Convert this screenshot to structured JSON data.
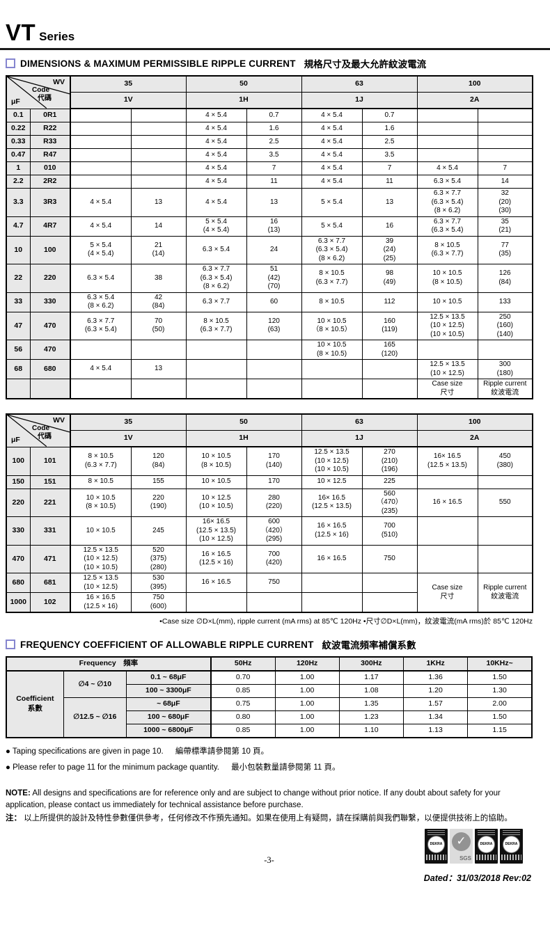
{
  "page": {
    "title": "VT",
    "title_suffix": "Series",
    "page_number": "-3-",
    "dated": "Dated：31/03/2018    Rev:02"
  },
  "section1": {
    "title_en": "DIMENSIONS & MAXIMUM PERMISSIBLE RIPPLE CURRENT",
    "title_cn": "規格尺寸及最大允許紋波電流"
  },
  "section2": {
    "title_en": "FREQUENCY COEFFICIENT OF ALLOWABLE RIPPLE CURRENT",
    "title_cn": "紋波電流頻率補償系數"
  },
  "cap_tables": [
    {
      "corner": {
        "wv": "WV",
        "code": "Code",
        "code_cn": "代碼",
        "uf": "μF"
      },
      "wv_values": [
        "35",
        "50",
        "63",
        "100"
      ],
      "code_values": [
        "1V",
        "1H",
        "1J",
        "2A"
      ],
      "rows": [
        {
          "uf": "0.1",
          "code": "0R1",
          "cells": [
            "",
            "",
            "4 × 5.4",
            "0.7",
            "4 × 5.4",
            "0.7",
            "",
            ""
          ]
        },
        {
          "uf": "0.22",
          "code": "R22",
          "cells": [
            "",
            "",
            "4 × 5.4",
            "1.6",
            "4 × 5.4",
            "1.6",
            "",
            ""
          ]
        },
        {
          "uf": "0.33",
          "code": "R33",
          "cells": [
            "",
            "",
            "4 × 5.4",
            "2.5",
            "4 × 5.4",
            "2.5",
            "",
            ""
          ]
        },
        {
          "uf": "0.47",
          "code": "R47",
          "cells": [
            "",
            "",
            "4 × 5.4",
            "3.5",
            "4 × 5.4",
            "3.5",
            "",
            ""
          ]
        },
        {
          "uf": "1",
          "code": "010",
          "cells": [
            "",
            "",
            "4 × 5.4",
            "7",
            "4 × 5.4",
            "7",
            "4 × 5.4",
            "7"
          ]
        },
        {
          "uf": "2.2",
          "code": "2R2",
          "cells": [
            "",
            "",
            "4 × 5.4",
            "11",
            "4 × 5.4",
            "11",
            "6.3 × 5.4",
            "14"
          ]
        },
        {
          "uf": "3.3",
          "code": "3R3",
          "cells": [
            "4 × 5.4",
            "13",
            "4 × 5.4",
            "13",
            "5 × 5.4",
            "13",
            "6.3 × 7.7\n(6.3 × 5.4)\n(8 × 6.2)",
            "32\n(20)\n(30)"
          ]
        },
        {
          "uf": "4.7",
          "code": "4R7",
          "cells": [
            "4 × 5.4",
            "14",
            "5 × 5.4\n(4 × 5.4)",
            "16\n(13)",
            "5 × 5.4",
            "16",
            "6.3 × 7.7\n(6.3 × 5.4)",
            "35\n(21)"
          ]
        },
        {
          "uf": "10",
          "code": "100",
          "cells": [
            "5 × 5.4\n(4 × 5.4)",
            "21\n(14)",
            "6.3 × 5.4",
            "24",
            "6.3 × 7.7\n(6.3 × 5.4)\n(8 × 6.2)",
            "39\n(24)\n(25)",
            "8 × 10.5\n(6.3 × 7.7)",
            "77\n(35)"
          ]
        },
        {
          "uf": "22",
          "code": "220",
          "cells": [
            "6.3 × 5.4",
            "38",
            "6.3 × 7.7\n(6.3 × 5.4)\n(8 × 6.2)",
            "51\n(42)\n(70)",
            "8 × 10.5\n(6.3 × 7.7)",
            "98\n(49)",
            "10 × 10.5\n(8 × 10.5)",
            "126\n(84)"
          ]
        },
        {
          "uf": "33",
          "code": "330",
          "cells": [
            "6.3 × 5.4\n(8 × 6.2)",
            "42\n(84)",
            "6.3 × 7.7",
            "60",
            "8 × 10.5",
            "112",
            "10 × 10.5",
            "133"
          ]
        },
        {
          "uf": "47",
          "code": "470",
          "cells": [
            "6.3 × 7.7\n(6.3 × 5.4)",
            "70\n(50)",
            "8 × 10.5\n(6.3 × 7.7)",
            "120\n(63)",
            "10 × 10.5\n（8 × 10.5）",
            "160\n(119)",
            "12.5 × 13.5\n(10 × 12.5)\n(10 × 10.5)",
            "250\n(160)\n(140)"
          ]
        },
        {
          "uf": "56",
          "code": "470",
          "cells": [
            "",
            "",
            "",
            "",
            "10 × 10.5\n(8 × 10.5)",
            "165\n(120)",
            "",
            ""
          ]
        },
        {
          "uf": "68",
          "code": "680",
          "cells": [
            "4 × 5.4",
            "13",
            "",
            "",
            "",
            "",
            "12.5 × 13.5\n(10 × 12.5)",
            "300\n(180)"
          ]
        },
        {
          "uf": "",
          "code": "",
          "cells": [
            "",
            "",
            "",
            "",
            "",
            "",
            "Case size\n尺寸",
            "Ripple current\n紋波電流"
          ]
        }
      ]
    },
    {
      "corner": {
        "wv": "WV",
        "code": "Code",
        "code_cn": "代碼",
        "uf": "μF"
      },
      "wv_values": [
        "35",
        "50",
        "63",
        "100"
      ],
      "code_values": [
        "1V",
        "1H",
        "1J",
        "2A"
      ],
      "rows": [
        {
          "uf": "100",
          "code": "101",
          "cells": [
            "8 × 10.5\n(6.3 × 7.7)",
            "120\n(84)",
            "10 × 10.5\n(8 × 10.5)",
            "170\n(140)",
            "12.5 × 13.5\n(10 × 12.5)\n(10 × 10.5)",
            "270\n(210)\n(196)",
            "16× 16.5\n(12.5 × 13.5)",
            "450\n(380)"
          ]
        },
        {
          "uf": "150",
          "code": "151",
          "cells": [
            "8 × 10.5",
            "155",
            "10 × 10.5",
            "170",
            "10 × 12.5",
            "225",
            "",
            ""
          ]
        },
        {
          "uf": "220",
          "code": "221",
          "cells": [
            "10 × 10.5\n(8 × 10.5)",
            "220\n(190)",
            "10 × 12.5\n(10 × 10.5)",
            "280\n(220)",
            "16× 16.5\n(12.5 × 13.5)",
            "560\n（470）\n(235)",
            "16 × 16.5",
            "550"
          ]
        },
        {
          "uf": "330",
          "code": "331",
          "cells": [
            "10 × 10.5",
            "245",
            "16× 16.5\n(12.5 × 13.5)\n(10 × 12.5)",
            "600\n（420）\n(295)",
            "16 × 16.5\n(12.5 × 16)",
            "700\n(510)",
            "",
            ""
          ]
        },
        {
          "uf": "470",
          "code": "471",
          "cells": [
            "12.5 × 13.5\n(10 × 12.5)\n(10 × 10.5)",
            "520\n(375)\n(280)",
            "16 × 16.5\n(12.5 × 16)",
            "700\n(420)",
            "16 × 16.5",
            "750",
            "",
            ""
          ]
        },
        {
          "uf": "680",
          "code": "681",
          "cells": [
            "12.5 × 13.5\n(10 × 12.5)",
            "530\n(395)",
            "16 × 16.5",
            "750",
            "",
            ""
          ]
        },
        {
          "uf": "1000",
          "code": "102",
          "cells": [
            "16 × 16.5\n(12.5 × 16)",
            "750\n(600)",
            "",
            "",
            "",
            ""
          ]
        }
      ],
      "label_span": {
        "row": 5,
        "rowspan": 2
      },
      "labels": {
        "case_size": "Case size\n尺寸",
        "ripple_current": "Ripple current\n紋波電流"
      },
      "note": "•Case size ∅D×L(mm), ripple current (mA rms) at 85℃ 120Hz    •尺寸∅D×L(mm)，紋波電流(mA rms)於 85℃ 120Hz"
    }
  ],
  "freq_table": {
    "header": {
      "frequency": "Frequency　頻率",
      "cols": [
        "50Hz",
        "120Hz",
        "300Hz",
        "1KHz",
        "10KHz~"
      ]
    },
    "row_label": "Coefficient\n系數",
    "groups": [
      {
        "diameter": "∅4 ~ ∅10",
        "rows": [
          {
            "range": "0.1 ~ 68μF",
            "values": [
              "0.70",
              "1.00",
              "1.17",
              "1.36",
              "1.50"
            ]
          },
          {
            "range": "100 ~ 3300μF",
            "values": [
              "0.85",
              "1.00",
              "1.08",
              "1.20",
              "1.30"
            ]
          }
        ]
      },
      {
        "diameter": "∅12.5 ~ ∅16",
        "rows": [
          {
            "range": "~ 68μF",
            "values": [
              "0.75",
              "1.00",
              "1.35",
              "1.57",
              "2.00"
            ]
          },
          {
            "range": "100 ~ 680μF",
            "values": [
              "0.80",
              "1.00",
              "1.23",
              "1.34",
              "1.50"
            ]
          },
          {
            "range": "1000 ~ 6800μF",
            "values": [
              "0.85",
              "1.00",
              "1.10",
              "1.13",
              "1.15"
            ]
          }
        ]
      }
    ]
  },
  "notes": {
    "bullets": [
      {
        "en": "● Taping specifications are given in page 10.",
        "cn": "編帶標準請參閱第 10 頁。"
      },
      {
        "en": "● Please refer to page 11 for the minimum package quantity.",
        "cn": "最小包裝數量請參閱第 11 頁。"
      }
    ],
    "note_label": "NOTE:",
    "note_en": "All designs and specifications are for reference only and are subject to change without prior notice. If any doubt about safety for your application, please contact us immediately for technical assistance before purchase.",
    "note_cn_label": "注：",
    "note_cn": "以上所提供的設計及特性參數僅供參考，任何修改不作預先通知。如果在使用上有疑問，請在採購前與我們聯繫，以便提供技術上的協助。"
  },
  "footer": {
    "certs": [
      {
        "type": "dekra",
        "label": "DEKRA"
      },
      {
        "type": "sgs",
        "label": "SGS"
      },
      {
        "type": "dekra",
        "label": "DEKRA"
      },
      {
        "type": "dekra",
        "label": "DEKRA"
      }
    ]
  }
}
